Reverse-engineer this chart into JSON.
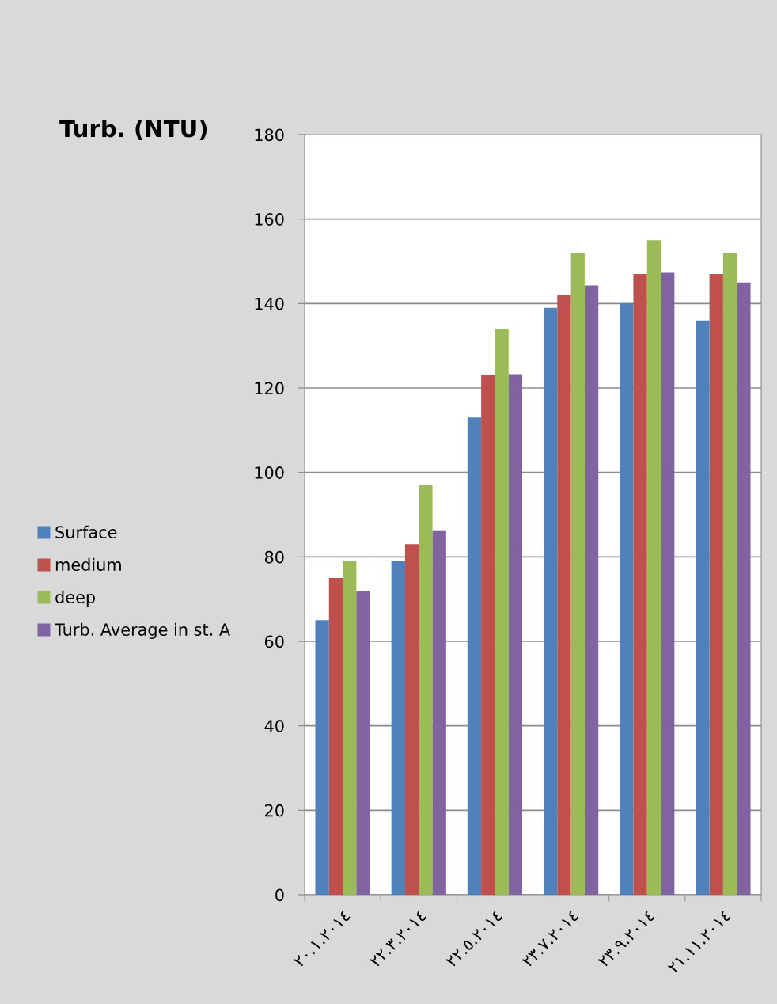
{
  "chart_data": {
    "type": "bar",
    "title": "Turb. (NTU)",
    "categories": [
      "٢٠.١.٢٠١٤",
      "٢٢.٣.٢٠١٤",
      "٢٢.٥.٢٠١٤",
      "٢٣.٧.٢٠١٤",
      "٢٣.٩.٢٠١٤",
      "٢١.١١.٢٠١٤"
    ],
    "series": [
      {
        "name": "Surface",
        "color": "#4f81bd",
        "values": [
          65,
          79,
          113,
          139,
          140,
          136
        ]
      },
      {
        "name": "medium",
        "color": "#c0504d",
        "values": [
          75,
          83,
          123,
          142,
          147,
          147
        ]
      },
      {
        "name": "deep",
        "color": "#9bbb59",
        "values": [
          79,
          97,
          134,
          152,
          155,
          152
        ]
      },
      {
        "name": "Turb. Average in st. A",
        "color": "#8064a2",
        "values": [
          72,
          86.3,
          123.3,
          144.3,
          147.3,
          145
        ]
      }
    ],
    "ylim": [
      0,
      180
    ],
    "yticks": [
      0,
      20,
      40,
      60,
      80,
      100,
      120,
      140,
      160,
      180
    ],
    "grid": "y",
    "legend": "left"
  }
}
